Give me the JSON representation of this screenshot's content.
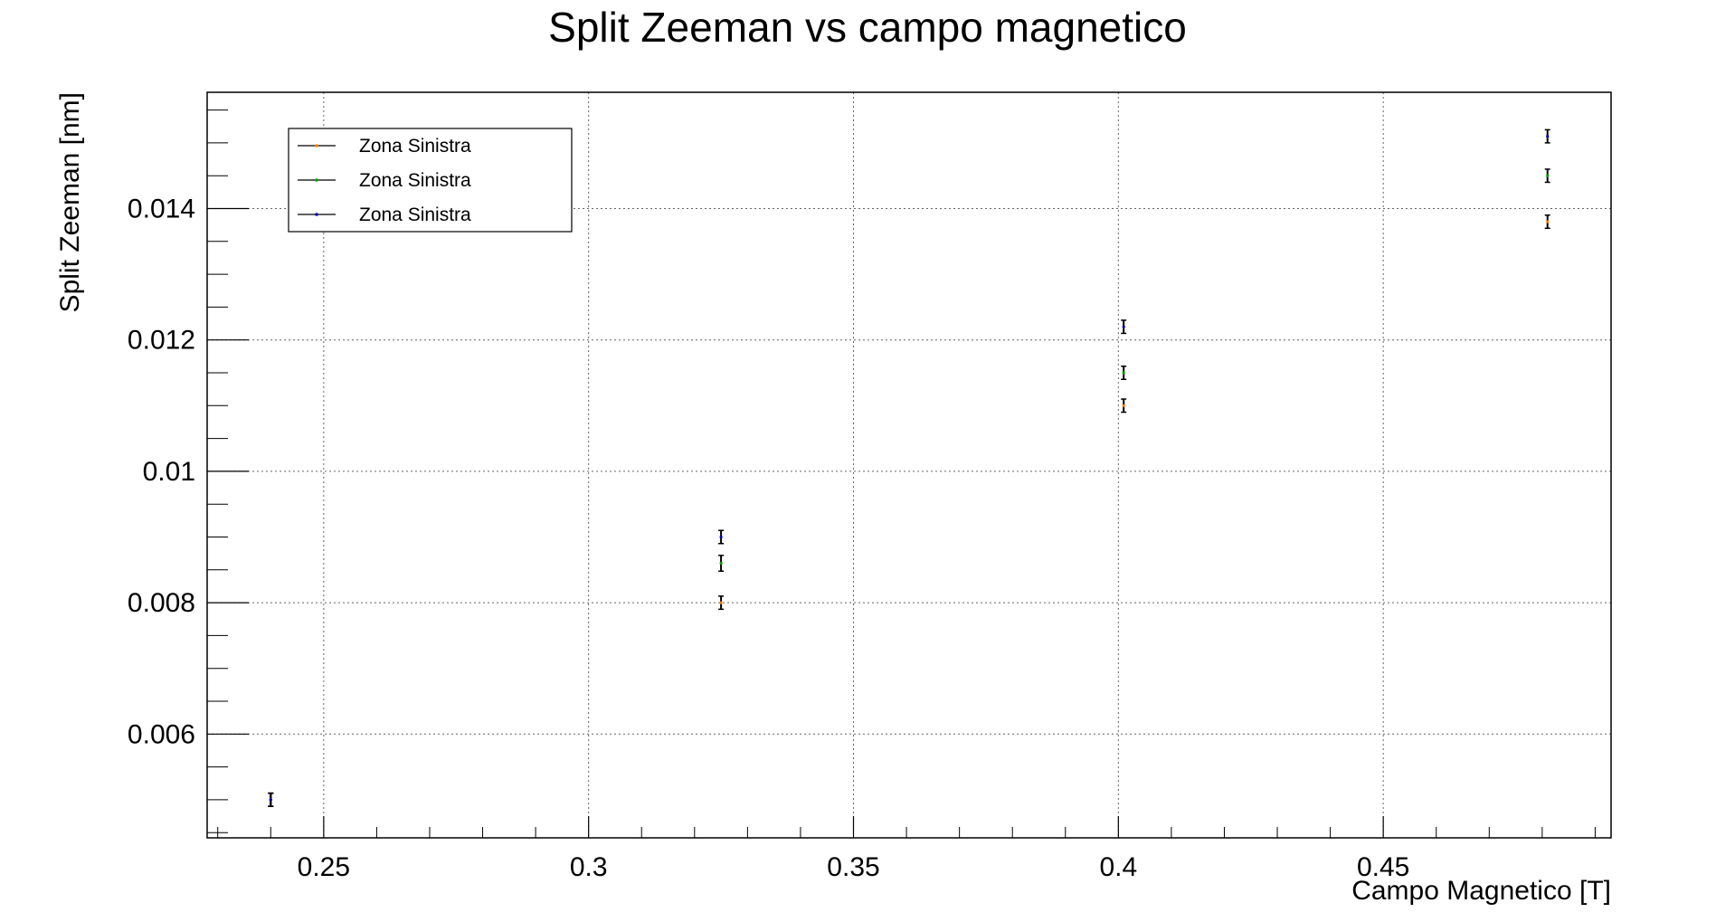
{
  "chart_data": {
    "type": "scatter",
    "title": "Split Zeeman vs campo magnetico",
    "xlabel": "Campo Magnetico [T]",
    "ylabel": "Split Zeeman [nm]",
    "xlim": [
      0.228,
      0.493
    ],
    "ylim": [
      0.00442,
      0.01577
    ],
    "x_ticks": [
      0.25,
      0.3,
      0.35,
      0.4,
      0.45
    ],
    "x_tick_labels": [
      "0.25",
      "0.3",
      "0.35",
      "0.4",
      "0.45"
    ],
    "y_ticks": [
      0.006,
      0.008,
      0.01,
      0.012,
      0.014
    ],
    "y_tick_labels": [
      "0.006",
      "0.008",
      "0.01",
      "0.012",
      "0.014"
    ],
    "grid": true,
    "legend_position": "top-left",
    "series": [
      {
        "name": "Zona Sinistra",
        "color": "#ff7f00",
        "points": [
          {
            "x": 0.24,
            "y": 0.005,
            "err": 0.0001
          },
          {
            "x": 0.325,
            "y": 0.008,
            "err": 0.0001
          },
          {
            "x": 0.401,
            "y": 0.011,
            "err": 0.0001
          },
          {
            "x": 0.481,
            "y": 0.0138,
            "err": 0.0001
          }
        ]
      },
      {
        "name": "Zona Sinistra",
        "color": "#00a000",
        "points": [
          {
            "x": 0.24,
            "y": 0.005,
            "err": 0.0001
          },
          {
            "x": 0.325,
            "y": 0.0086,
            "err": 0.00012
          },
          {
            "x": 0.401,
            "y": 0.0115,
            "err": 0.0001
          },
          {
            "x": 0.481,
            "y": 0.0145,
            "err": 0.0001
          }
        ]
      },
      {
        "name": "Zona Sinistra",
        "color": "#0000c0",
        "points": [
          {
            "x": 0.24,
            "y": 0.005,
            "err": 0.0001
          },
          {
            "x": 0.325,
            "y": 0.009,
            "err": 0.0001
          },
          {
            "x": 0.401,
            "y": 0.0122,
            "err": 0.0001
          },
          {
            "x": 0.481,
            "y": 0.0151,
            "err": 0.0001
          }
        ]
      }
    ]
  }
}
